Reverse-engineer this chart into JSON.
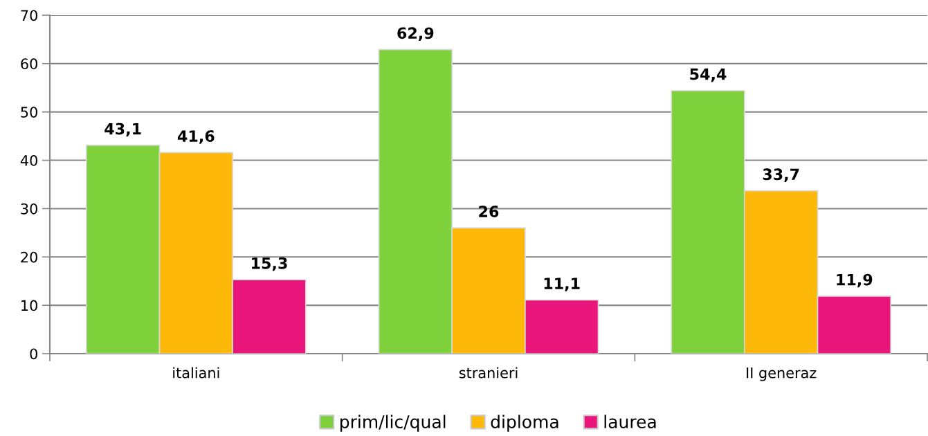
{
  "chart_data": {
    "type": "bar",
    "categories": [
      "italiani",
      "stranieri",
      "II generaz"
    ],
    "series": [
      {
        "name": "prim/lic/qual",
        "color": "#7fd13b",
        "values": [
          43.1,
          62.9,
          54.4
        ],
        "value_labels": [
          "43,1",
          "62,9",
          "54,4"
        ]
      },
      {
        "name": "diploma",
        "color": "#feb80a",
        "values": [
          41.6,
          26,
          33.7
        ],
        "value_labels": [
          "41,6",
          "26",
          "33,7"
        ]
      },
      {
        "name": "laurea",
        "color": "#ea157a",
        "values": [
          15.3,
          11.1,
          11.9
        ],
        "value_labels": [
          "15,3",
          "11,1",
          "11,9"
        ]
      }
    ],
    "ylim": [
      0,
      70
    ],
    "yticks": [
      0,
      10,
      20,
      30,
      40,
      50,
      60,
      70
    ],
    "grid": "y",
    "legend": "bottom"
  }
}
